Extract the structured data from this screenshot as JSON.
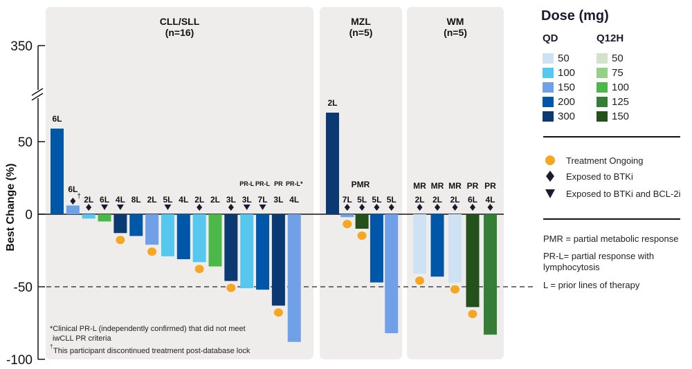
{
  "chart_data": {
    "type": "bar",
    "title": "",
    "xlabel": "",
    "ylabel": "Best Change (%)",
    "yticks": [
      350,
      50,
      0,
      -50,
      -100
    ],
    "ylim": [
      -100,
      350
    ],
    "axis_break": "between 50 and 350",
    "reference_line": {
      "value": -50,
      "style": "dashed"
    },
    "grid": false,
    "legend_position": "right",
    "panels": [
      {
        "name": "CLL/SLL",
        "n_label": "(n=16)",
        "bars": [
          {
            "value": 59,
            "dose": "QD 200",
            "lines": "6L",
            "response": "",
            "marker": "",
            "ongoing": false
          },
          {
            "value": 6,
            "dose": "QD 150",
            "lines": "6L",
            "response": "",
            "marker": "diamond",
            "dagger": true,
            "ongoing": false
          },
          {
            "value": -3,
            "dose": "QD 100",
            "lines": "2L",
            "response": "",
            "marker": "diamond",
            "ongoing": false
          },
          {
            "value": -5,
            "dose": "Q12H 100",
            "lines": "6L",
            "response": "",
            "marker": "triangle",
            "ongoing": false
          },
          {
            "value": -13,
            "dose": "QD 300",
            "lines": "4L",
            "response": "",
            "marker": "triangle",
            "ongoing": true
          },
          {
            "value": -15,
            "dose": "QD 200",
            "lines": "8L",
            "response": "",
            "marker": "",
            "ongoing": false
          },
          {
            "value": -21,
            "dose": "QD 150",
            "lines": "2L",
            "response": "",
            "marker": "",
            "ongoing": true
          },
          {
            "value": -29,
            "dose": "QD 100",
            "lines": "5L",
            "response": "",
            "marker": "triangle",
            "ongoing": false
          },
          {
            "value": -31,
            "dose": "QD 200",
            "lines": "4L",
            "response": "",
            "marker": "",
            "ongoing": false
          },
          {
            "value": -33,
            "dose": "QD 100",
            "lines": "2L",
            "response": "",
            "marker": "diamond",
            "ongoing": true
          },
          {
            "value": -36,
            "dose": "Q12H 100",
            "lines": "2L",
            "response": "",
            "marker": "",
            "ongoing": false
          },
          {
            "value": -46,
            "dose": "QD 300",
            "lines": "3L",
            "response": "",
            "marker": "diamond",
            "ongoing": true
          },
          {
            "value": -51,
            "dose": "QD 100",
            "lines": "3L",
            "response": "PR-L",
            "marker": "triangle",
            "ongoing": false
          },
          {
            "value": -52,
            "dose": "QD 200",
            "lines": "7L",
            "response": "PR-L",
            "marker": "triangle",
            "ongoing": false
          },
          {
            "value": -63,
            "dose": "QD 300",
            "lines": "3L",
            "response": "PR",
            "marker": "",
            "ongoing": true
          },
          {
            "value": -88,
            "dose": "QD 150",
            "lines": "4L",
            "response": "PR-L*",
            "marker": "",
            "ongoing": false
          }
        ],
        "footnotes": [
          "*Clinical PR-L (independently confirmed) that did not meet",
          " iwCLL PR criteria",
          "This participant discontinued treatment post-database lock"
        ],
        "footnote_dagger": "†"
      },
      {
        "name": "MZL",
        "n_label": "(n=5)",
        "group_label": "PMR",
        "bars": [
          {
            "value": 70,
            "dose": "QD 300",
            "lines": "2L",
            "response": "",
            "marker": "",
            "ongoing": false
          },
          {
            "value": -2,
            "dose": "QD 150",
            "lines": "7L",
            "response": "",
            "marker": "diamond",
            "ongoing": true
          },
          {
            "value": -10,
            "dose": "Q12H 150",
            "lines": "5L",
            "response": "",
            "marker": "diamond",
            "ongoing": true
          },
          {
            "value": -47,
            "dose": "QD 200",
            "lines": "5L",
            "response": "",
            "marker": "diamond",
            "ongoing": false
          },
          {
            "value": -82,
            "dose": "QD 150",
            "lines": "5L",
            "response": "",
            "marker": "diamond",
            "ongoing": false
          }
        ]
      },
      {
        "name": "WM",
        "n_label": "(n=5)",
        "bars": [
          {
            "value": -41,
            "dose": "QD 50",
            "lines": "2L",
            "response": "MR",
            "marker": "diamond",
            "ongoing": true
          },
          {
            "value": -43,
            "dose": "QD 200",
            "lines": "2L",
            "response": "MR",
            "marker": "diamond",
            "ongoing": false
          },
          {
            "value": -47,
            "dose": "QD 50",
            "lines": "2L",
            "response": "MR",
            "marker": "diamond",
            "ongoing": true
          },
          {
            "value": -64,
            "dose": "Q12H 150",
            "lines": "6L",
            "response": "PR",
            "marker": "diamond",
            "ongoing": true
          },
          {
            "value": -83,
            "dose": "Q12H 125",
            "lines": "4L",
            "response": "PR",
            "marker": "diamond",
            "ongoing": false
          }
        ]
      }
    ],
    "dose_colors": {
      "QD 50": "#cfe2f3",
      "QD 100": "#56c8ef",
      "QD 150": "#6fa0e8",
      "QD 200": "#0057a8",
      "QD 300": "#0b3a72",
      "Q12H 50": "#d2e3cc",
      "Q12H 75": "#96cf8a",
      "Q12H 100": "#4cb84a",
      "Q12H 125": "#357e37",
      "Q12H 150": "#24501a"
    },
    "ongoing_color": "#f5a623",
    "marker_color": "#1a1a2e",
    "panel_color": "#efedeb"
  },
  "legend": {
    "title": "Dose (mg)",
    "qd_header": "QD",
    "q12h_header": "Q12H",
    "qd": [
      {
        "label": "50",
        "key": "QD 50"
      },
      {
        "label": "100",
        "key": "QD 100"
      },
      {
        "label": "150",
        "key": "QD 150"
      },
      {
        "label": "200",
        "key": "QD 200"
      },
      {
        "label": "300",
        "key": "QD 300"
      }
    ],
    "q12h": [
      {
        "label": "50",
        "key": "Q12H 50"
      },
      {
        "label": "75",
        "key": "Q12H 75"
      },
      {
        "label": "100",
        "key": "Q12H 100"
      },
      {
        "label": "125",
        "key": "Q12H 125"
      },
      {
        "label": "150",
        "key": "Q12H 150"
      }
    ],
    "markers": {
      "ongoing": "Treatment Ongoing",
      "btki": "Exposed to BTKi",
      "btki_bcl2i": "Exposed to BTKi and BCL-2i"
    },
    "notes": {
      "pmr": "PMR = partial metabolic response",
      "prl": "PR-L= partial response with lymphocytosis",
      "l": "L = prior lines of therapy"
    }
  }
}
